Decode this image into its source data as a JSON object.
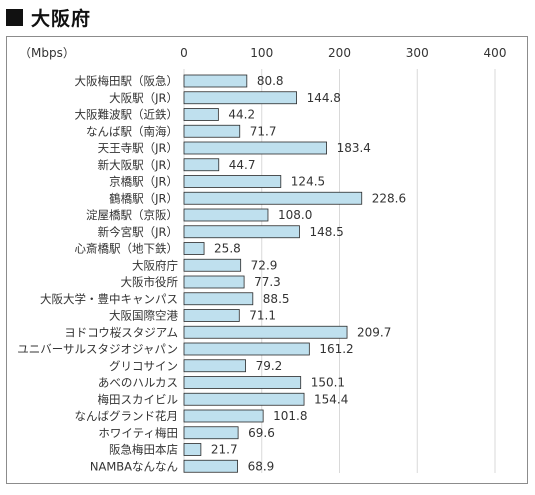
{
  "heading": {
    "title": "大阪府"
  },
  "chart_data": {
    "type": "bar",
    "orientation": "horizontal",
    "title": "",
    "unit_label": "（Mbps）",
    "xlim": [
      0,
      400
    ],
    "ticks": [
      0,
      100,
      200,
      300,
      400
    ],
    "grid": true,
    "colors": {
      "bar_fill": "#bfe0ee",
      "bar_stroke": "#2a2a2a",
      "grid": "#d9d9d9",
      "text": "#333333"
    },
    "categories": [
      "大阪梅田駅（阪急）",
      "大阪駅（JR）",
      "大阪難波駅（近鉄）",
      "なんば駅（南海）",
      "天王寺駅（JR）",
      "新大阪駅（JR）",
      "京橋駅（JR）",
      "鶴橋駅（JR）",
      "淀屋橋駅（京阪）",
      "新今宮駅（JR）",
      "心斎橋駅（地下鉄）",
      "大阪府庁",
      "大阪市役所",
      "大阪大学・豊中キャンパス",
      "大阪国際空港",
      "ヨドコウ桜スタジアム",
      "ユニバーサルスタジオジャパン",
      "グリコサイン",
      "あべのハルカス",
      "梅田スカイビル",
      "なんばグランド花月",
      "ホワイティ梅田",
      "阪急梅田本店",
      "NAMBAなんなん"
    ],
    "values": [
      80.8,
      144.8,
      44.2,
      71.7,
      183.4,
      44.7,
      124.5,
      228.6,
      108.0,
      148.5,
      25.8,
      72.9,
      77.3,
      88.5,
      71.1,
      209.7,
      161.2,
      79.2,
      150.1,
      154.4,
      101.8,
      69.6,
      21.7,
      68.9
    ],
    "value_labels": [
      "80.8",
      "144.8",
      "44.2",
      "71.7",
      "183.4",
      "44.7",
      "124.5",
      "228.6",
      "108.0",
      "148.5",
      "25.8",
      "72.9",
      "77.3",
      "88.5",
      "71.1",
      "209.7",
      "161.2",
      "79.2",
      "150.1",
      "154.4",
      "101.8",
      "69.6",
      "21.7",
      "68.9"
    ]
  }
}
